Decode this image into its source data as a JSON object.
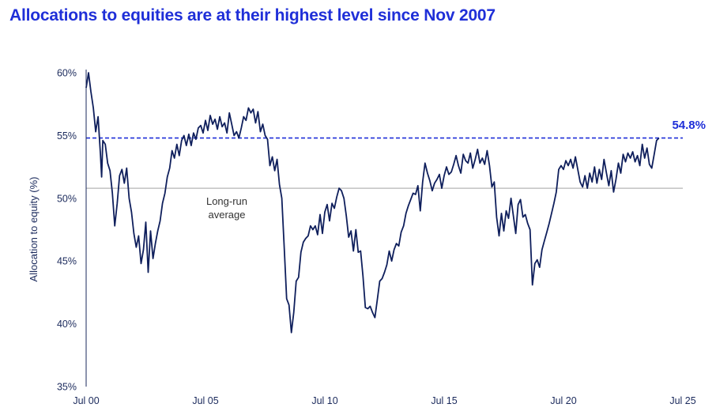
{
  "chart_data": {
    "type": "line",
    "title": "Allocations to equities are at their highest level since Nov 2007",
    "ylabel": "Allocation to equity (%)",
    "xlabel": "",
    "xlim": [
      2000.5,
      2025.5
    ],
    "ylim": [
      35,
      60
    ],
    "x_ticks": [
      {
        "x": 2000.5,
        "label": "Jul 00"
      },
      {
        "x": 2005.5,
        "label": "Jul 05"
      },
      {
        "x": 2010.5,
        "label": "Jul 10"
      },
      {
        "x": 2015.5,
        "label": "Jul 15"
      },
      {
        "x": 2020.5,
        "label": "Jul 20"
      },
      {
        "x": 2025.5,
        "label": "Jul 25"
      }
    ],
    "y_ticks": [
      {
        "y": 60,
        "label": "60%"
      },
      {
        "y": 55,
        "label": "55%"
      },
      {
        "y": 50,
        "label": "50%"
      },
      {
        "y": 45,
        "label": "45%"
      },
      {
        "y": 40,
        "label": "40%"
      },
      {
        "y": 35,
        "label": "35%"
      }
    ],
    "long_run_average": {
      "value": 50.8,
      "label_line1": "Long-run",
      "label_line2": "average"
    },
    "latest": {
      "value": 54.8,
      "label": "54.8%"
    },
    "series": [
      {
        "color": "#0f1f5c",
        "points": [
          [
            2000.5,
            58.8
          ],
          [
            2000.6,
            60.0
          ],
          [
            2000.7,
            58.5
          ],
          [
            2000.8,
            57.2
          ],
          [
            2000.9,
            55.3
          ],
          [
            2001.0,
            56.5
          ],
          [
            2001.1,
            53.5
          ],
          [
            2001.15,
            51.7
          ],
          [
            2001.2,
            54.6
          ],
          [
            2001.3,
            54.3
          ],
          [
            2001.4,
            52.8
          ],
          [
            2001.5,
            52.2
          ],
          [
            2001.6,
            50.4
          ],
          [
            2001.7,
            47.8
          ],
          [
            2001.8,
            49.6
          ],
          [
            2001.9,
            51.8
          ],
          [
            2002.0,
            52.3
          ],
          [
            2002.1,
            51.2
          ],
          [
            2002.2,
            52.4
          ],
          [
            2002.3,
            50.0
          ],
          [
            2002.4,
            48.9
          ],
          [
            2002.5,
            47.2
          ],
          [
            2002.6,
            46.1
          ],
          [
            2002.7,
            47.0
          ],
          [
            2002.8,
            44.8
          ],
          [
            2002.9,
            45.9
          ],
          [
            2003.0,
            48.1
          ],
          [
            2003.1,
            44.1
          ],
          [
            2003.2,
            47.4
          ],
          [
            2003.3,
            45.2
          ],
          [
            2003.4,
            46.4
          ],
          [
            2003.5,
            47.4
          ],
          [
            2003.6,
            48.2
          ],
          [
            2003.7,
            49.6
          ],
          [
            2003.8,
            50.4
          ],
          [
            2003.9,
            51.7
          ],
          [
            2004.0,
            52.4
          ],
          [
            2004.1,
            53.8
          ],
          [
            2004.2,
            53.2
          ],
          [
            2004.3,
            54.3
          ],
          [
            2004.4,
            53.4
          ],
          [
            2004.5,
            54.6
          ],
          [
            2004.6,
            55.0
          ],
          [
            2004.7,
            54.2
          ],
          [
            2004.8,
            55.1
          ],
          [
            2004.9,
            54.2
          ],
          [
            2005.0,
            55.2
          ],
          [
            2005.1,
            54.7
          ],
          [
            2005.2,
            55.6
          ],
          [
            2005.3,
            55.8
          ],
          [
            2005.4,
            55.2
          ],
          [
            2005.5,
            56.2
          ],
          [
            2005.6,
            55.4
          ],
          [
            2005.7,
            56.6
          ],
          [
            2005.8,
            55.9
          ],
          [
            2005.9,
            56.3
          ],
          [
            2006.0,
            55.5
          ],
          [
            2006.1,
            56.5
          ],
          [
            2006.2,
            55.7
          ],
          [
            2006.3,
            56.0
          ],
          [
            2006.4,
            55.2
          ],
          [
            2006.5,
            56.8
          ],
          [
            2006.6,
            55.9
          ],
          [
            2006.7,
            55.0
          ],
          [
            2006.8,
            55.3
          ],
          [
            2006.9,
            54.8
          ],
          [
            2007.0,
            55.6
          ],
          [
            2007.1,
            56.5
          ],
          [
            2007.2,
            56.2
          ],
          [
            2007.3,
            57.2
          ],
          [
            2007.4,
            56.8
          ],
          [
            2007.5,
            57.1
          ],
          [
            2007.6,
            56.0
          ],
          [
            2007.7,
            56.9
          ],
          [
            2007.8,
            55.3
          ],
          [
            2007.9,
            55.9
          ],
          [
            2008.0,
            55.0
          ],
          [
            2008.1,
            54.7
          ],
          [
            2008.2,
            52.6
          ],
          [
            2008.3,
            53.3
          ],
          [
            2008.4,
            52.2
          ],
          [
            2008.5,
            53.1
          ],
          [
            2008.6,
            51.1
          ],
          [
            2008.7,
            50.0
          ],
          [
            2008.8,
            46.0
          ],
          [
            2008.9,
            42.0
          ],
          [
            2009.0,
            41.5
          ],
          [
            2009.1,
            39.3
          ],
          [
            2009.2,
            40.9
          ],
          [
            2009.3,
            43.4
          ],
          [
            2009.4,
            43.7
          ],
          [
            2009.5,
            45.7
          ],
          [
            2009.6,
            46.5
          ],
          [
            2009.7,
            46.8
          ],
          [
            2009.8,
            47.0
          ],
          [
            2009.9,
            47.8
          ],
          [
            2010.0,
            47.5
          ],
          [
            2010.1,
            47.8
          ],
          [
            2010.2,
            47.1
          ],
          [
            2010.3,
            48.7
          ],
          [
            2010.4,
            47.2
          ],
          [
            2010.5,
            48.9
          ],
          [
            2010.6,
            49.5
          ],
          [
            2010.7,
            48.2
          ],
          [
            2010.8,
            49.6
          ],
          [
            2010.9,
            49.2
          ],
          [
            2011.0,
            50.1
          ],
          [
            2011.1,
            50.8
          ],
          [
            2011.2,
            50.6
          ],
          [
            2011.3,
            50.0
          ],
          [
            2011.4,
            48.6
          ],
          [
            2011.5,
            46.9
          ],
          [
            2011.6,
            47.4
          ],
          [
            2011.7,
            45.8
          ],
          [
            2011.8,
            47.5
          ],
          [
            2011.9,
            45.7
          ],
          [
            2012.0,
            45.8
          ],
          [
            2012.1,
            43.8
          ],
          [
            2012.2,
            41.3
          ],
          [
            2012.3,
            41.2
          ],
          [
            2012.4,
            41.4
          ],
          [
            2012.5,
            40.9
          ],
          [
            2012.6,
            40.5
          ],
          [
            2012.7,
            41.9
          ],
          [
            2012.8,
            43.4
          ],
          [
            2012.9,
            43.6
          ],
          [
            2013.0,
            44.1
          ],
          [
            2013.1,
            44.7
          ],
          [
            2013.2,
            45.8
          ],
          [
            2013.3,
            45.0
          ],
          [
            2013.4,
            45.9
          ],
          [
            2013.5,
            46.4
          ],
          [
            2013.6,
            46.2
          ],
          [
            2013.7,
            47.3
          ],
          [
            2013.8,
            47.8
          ],
          [
            2013.9,
            48.8
          ],
          [
            2014.0,
            49.4
          ],
          [
            2014.1,
            49.9
          ],
          [
            2014.2,
            50.4
          ],
          [
            2014.3,
            50.3
          ],
          [
            2014.4,
            51.0
          ],
          [
            2014.5,
            49.0
          ],
          [
            2014.6,
            51.3
          ],
          [
            2014.7,
            52.8
          ],
          [
            2014.8,
            52.0
          ],
          [
            2014.9,
            51.4
          ],
          [
            2015.0,
            50.6
          ],
          [
            2015.1,
            51.2
          ],
          [
            2015.2,
            51.5
          ],
          [
            2015.3,
            51.9
          ],
          [
            2015.4,
            50.8
          ],
          [
            2015.5,
            51.8
          ],
          [
            2015.6,
            52.5
          ],
          [
            2015.7,
            51.9
          ],
          [
            2015.8,
            52.1
          ],
          [
            2015.9,
            52.7
          ],
          [
            2016.0,
            53.4
          ],
          [
            2016.1,
            52.6
          ],
          [
            2016.2,
            52.0
          ],
          [
            2016.3,
            53.5
          ],
          [
            2016.4,
            53.0
          ],
          [
            2016.5,
            52.8
          ],
          [
            2016.6,
            53.6
          ],
          [
            2016.7,
            52.4
          ],
          [
            2016.8,
            53.1
          ],
          [
            2016.9,
            53.9
          ],
          [
            2017.0,
            52.8
          ],
          [
            2017.1,
            53.2
          ],
          [
            2017.2,
            52.7
          ],
          [
            2017.3,
            53.8
          ],
          [
            2017.4,
            52.6
          ],
          [
            2017.5,
            50.9
          ],
          [
            2017.6,
            51.3
          ],
          [
            2017.7,
            48.5
          ],
          [
            2017.8,
            47.0
          ],
          [
            2017.9,
            48.8
          ],
          [
            2018.0,
            47.4
          ],
          [
            2018.1,
            49.0
          ],
          [
            2018.2,
            48.4
          ],
          [
            2018.3,
            50.0
          ],
          [
            2018.4,
            48.6
          ],
          [
            2018.5,
            47.2
          ],
          [
            2018.6,
            49.5
          ],
          [
            2018.7,
            49.9
          ],
          [
            2018.8,
            48.5
          ],
          [
            2018.9,
            48.7
          ],
          [
            2019.0,
            48.0
          ],
          [
            2019.1,
            47.5
          ],
          [
            2019.2,
            43.1
          ],
          [
            2019.3,
            44.8
          ],
          [
            2019.4,
            45.1
          ],
          [
            2019.5,
            44.5
          ],
          [
            2019.6,
            45.9
          ],
          [
            2019.7,
            46.6
          ],
          [
            2019.8,
            47.3
          ],
          [
            2019.9,
            48.0
          ],
          [
            2020.0,
            48.8
          ],
          [
            2020.1,
            49.6
          ],
          [
            2020.2,
            50.5
          ],
          [
            2020.3,
            52.3
          ],
          [
            2020.4,
            52.6
          ],
          [
            2020.5,
            52.3
          ],
          [
            2020.6,
            53.0
          ],
          [
            2020.7,
            52.6
          ],
          [
            2020.8,
            53.1
          ],
          [
            2020.9,
            52.4
          ],
          [
            2021.0,
            53.3
          ],
          [
            2021.1,
            52.3
          ],
          [
            2021.2,
            51.3
          ],
          [
            2021.3,
            50.9
          ],
          [
            2021.4,
            51.8
          ],
          [
            2021.5,
            50.8
          ],
          [
            2021.6,
            52.0
          ],
          [
            2021.7,
            51.3
          ],
          [
            2021.8,
            52.5
          ],
          [
            2021.9,
            51.2
          ],
          [
            2022.0,
            52.3
          ],
          [
            2022.1,
            51.5
          ],
          [
            2022.2,
            53.1
          ],
          [
            2022.3,
            52.0
          ],
          [
            2022.4,
            51.0
          ],
          [
            2022.5,
            52.2
          ],
          [
            2022.6,
            50.5
          ],
          [
            2022.7,
            51.5
          ],
          [
            2022.8,
            52.8
          ],
          [
            2022.9,
            52.0
          ],
          [
            2023.0,
            53.5
          ],
          [
            2023.1,
            52.9
          ],
          [
            2023.2,
            53.6
          ],
          [
            2023.3,
            53.2
          ],
          [
            2023.4,
            53.7
          ],
          [
            2023.5,
            52.9
          ],
          [
            2023.6,
            53.4
          ],
          [
            2023.7,
            52.6
          ],
          [
            2023.8,
            54.3
          ],
          [
            2023.9,
            53.2
          ],
          [
            2024.0,
            54.0
          ],
          [
            2024.1,
            52.7
          ],
          [
            2024.2,
            52.4
          ],
          [
            2024.3,
            53.5
          ],
          [
            2024.4,
            54.6
          ],
          [
            2024.5,
            54.8
          ]
        ]
      }
    ],
    "grid": false,
    "legend": "none"
  }
}
